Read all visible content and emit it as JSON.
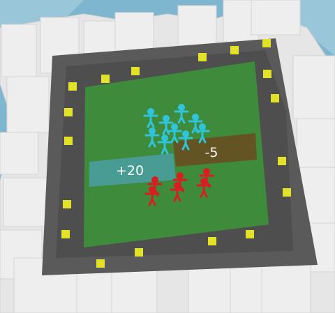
{
  "colors": {
    "sky": "#7fb6cf",
    "building": "#eeeeee",
    "road": "#5a5a5a",
    "field": "#3f8b3c",
    "marker": "#e2e22a",
    "player_team": "#30c4dc",
    "enemy_team": "#d81e1e",
    "gate_positive": "#4a9fa2",
    "gate_negative": "#6b4a1e"
  },
  "gates": [
    {
      "label": "+20",
      "kind": "positive"
    },
    {
      "label": "-5",
      "kind": "negative"
    }
  ],
  "units": {
    "player": {
      "icon": "stickman-icon",
      "visible_count": 9
    },
    "enemy": {
      "icon": "stickman-icon",
      "visible_count": 6
    }
  }
}
